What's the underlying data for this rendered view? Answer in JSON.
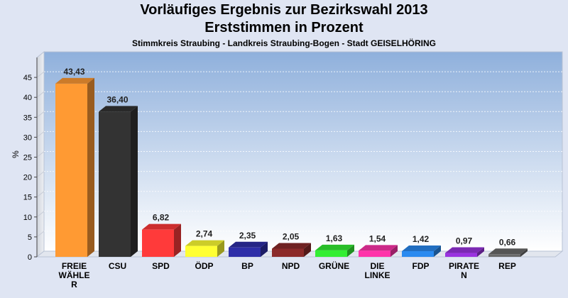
{
  "chart_data": {
    "type": "bar",
    "title": "Vorläufiges Ergebnis zur Bezirkswahl 2013",
    "subtitle": "Erststimmen in Prozent",
    "subsubtitle": "Stimmkreis Straubing - Landkreis Straubing-Bogen - Stadt GEISELHÖRING",
    "ylabel": "%",
    "ylim": [
      0,
      50
    ],
    "yticks": [
      "0",
      "5",
      "10",
      "15",
      "20",
      "25",
      "30",
      "35",
      "40",
      "45"
    ],
    "grid": true,
    "categories": [
      [
        "FREIE",
        "WÄHLE",
        "R"
      ],
      [
        "CSU"
      ],
      [
        "SPD"
      ],
      [
        "ÖDP"
      ],
      [
        "BP"
      ],
      [
        "NPD"
      ],
      [
        "GRÜNE"
      ],
      [
        "DIE",
        "LINKE"
      ],
      [
        "FDP"
      ],
      [
        "PIRATE",
        "N"
      ],
      [
        "REP"
      ]
    ],
    "values": [
      43.43,
      36.4,
      6.82,
      2.74,
      2.35,
      2.05,
      1.63,
      1.54,
      1.42,
      0.97,
      0.66
    ],
    "value_labels": [
      "43,43",
      "36,40",
      "6,82",
      "2,74",
      "2,35",
      "2,05",
      "1,63",
      "1,54",
      "1,42",
      "0,97",
      "0,66"
    ],
    "colors": [
      "#ff9a33",
      "#333333",
      "#ff3a3a",
      "#ffff33",
      "#2e2ea8",
      "#8b2a2a",
      "#33ee33",
      "#ff33aa",
      "#2a8af0",
      "#9a33e0",
      "#6a6a6a"
    ]
  }
}
